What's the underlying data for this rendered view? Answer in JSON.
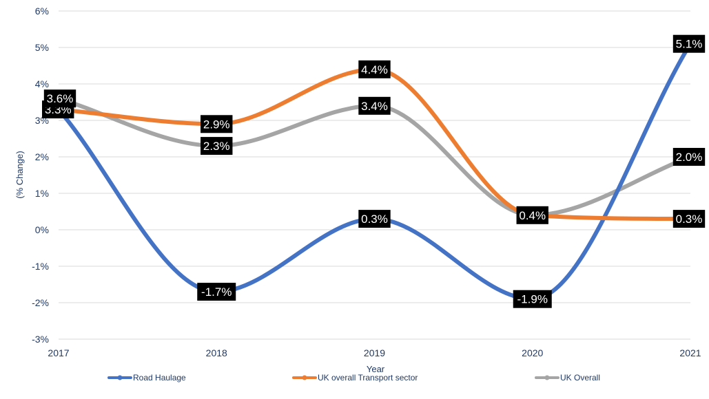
{
  "chart_data": {
    "type": "line",
    "x": [
      "2017",
      "2018",
      "2019",
      "2020",
      "2021"
    ],
    "xlabel": "Year",
    "ylabel": "(% Change)",
    "ylim": [
      -3,
      6
    ],
    "yticks": [
      -3,
      -2,
      -1,
      0,
      1,
      2,
      3,
      4,
      5,
      6
    ],
    "ytick_labels": [
      "-3%",
      "-2%",
      "-1%",
      "0%",
      "1%",
      "2%",
      "3%",
      "4%",
      "5%",
      "6%"
    ],
    "grid": true,
    "smooth": true,
    "legend_position": "bottom",
    "series": [
      {
        "name": "Road Haulage",
        "color": "#4472c4",
        "values": [
          3.3,
          -1.7,
          0.3,
          -1.9,
          5.1
        ],
        "labels": [
          "3.3%",
          "-1.7%",
          "0.3%",
          "-1.9%",
          "5.1%"
        ]
      },
      {
        "name": "UK overall Transport sector",
        "color": "#ed7d31",
        "values": [
          3.3,
          2.9,
          4.4,
          0.4,
          0.3
        ],
        "labels": [
          "3.3%",
          "2.9%",
          "4.4%",
          "0.4%",
          "0.3%"
        ]
      },
      {
        "name": "UK Overall",
        "color": "#a5a5a5",
        "values": [
          3.6,
          2.3,
          3.4,
          0.4,
          2.0
        ],
        "labels": [
          "3.6%",
          "2.3%",
          "3.4%",
          "",
          "2.0%"
        ]
      }
    ]
  }
}
